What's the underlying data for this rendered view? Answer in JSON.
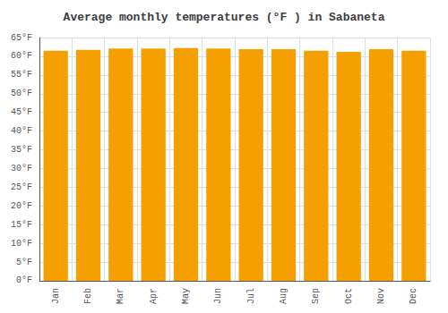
{
  "chart_data": {
    "type": "bar",
    "title": "Average monthly temperatures (°F ) in Sabaneta",
    "categories": [
      "Jan",
      "Feb",
      "Mar",
      "Apr",
      "May",
      "Jun",
      "Jul",
      "Aug",
      "Sep",
      "Oct",
      "Nov",
      "Dec"
    ],
    "values": [
      61.5,
      61.7,
      62.1,
      62.1,
      62.2,
      62.1,
      61.9,
      61.9,
      61.5,
      61.2,
      61.9,
      61.5
    ],
    "color": "#F5A000",
    "ylim": [
      0,
      65
    ],
    "yticks": [
      {
        "value": 0,
        "label": "0°F"
      },
      {
        "value": 5,
        "label": "5°F"
      },
      {
        "value": 10,
        "label": "10°F"
      },
      {
        "value": 15,
        "label": "15°F"
      },
      {
        "value": 20,
        "label": "20°F"
      },
      {
        "value": 25,
        "label": "25°F"
      },
      {
        "value": 30,
        "label": "30°F"
      },
      {
        "value": 35,
        "label": "35°F"
      },
      {
        "value": 40,
        "label": "40°F"
      },
      {
        "value": 45,
        "label": "45°F"
      },
      {
        "value": 50,
        "label": "50°F"
      },
      {
        "value": 55,
        "label": "55°F"
      },
      {
        "value": 60,
        "label": "60°F"
      },
      {
        "value": 65,
        "label": "65°F"
      }
    ],
    "grid": true
  }
}
